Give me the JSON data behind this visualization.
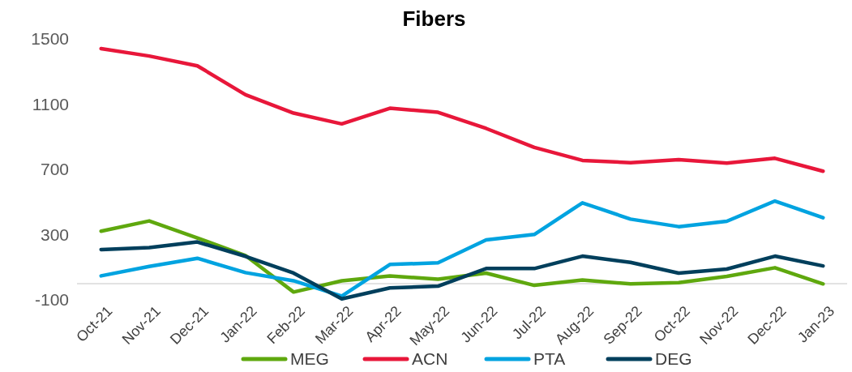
{
  "chart_data": {
    "type": "line",
    "title": "Fibers",
    "categories": [
      "Oct-21",
      "Nov-21",
      "Dec-21",
      "Jan-22",
      "Feb-22",
      "Mar-22",
      "Apr-22",
      "May-22",
      "Jun-22",
      "Jul-22",
      "Aug-22",
      "Sep-22",
      "Oct-22",
      "Nov-22",
      "Dec-22",
      "Jan-23"
    ],
    "series": [
      {
        "name": "MEG",
        "color": "#5fa80e",
        "values": [
          321,
          384,
          280,
          172,
          -52,
          17,
          47,
          27,
          64,
          -11,
          22,
          -2,
          6,
          44,
          97,
          -2
        ]
      },
      {
        "name": "ACN",
        "color": "#e8173a",
        "values": [
          1440,
          1395,
          1335,
          1158,
          1045,
          979,
          1075,
          1050,
          951,
          835,
          755,
          741,
          760,
          739,
          768,
          689
        ]
      },
      {
        "name": "PTA",
        "color": "#00a3e0",
        "values": [
          47,
          105,
          155,
          67,
          17,
          -77,
          117,
          127,
          268,
          301,
          495,
          395,
          349,
          382,
          506,
          404
        ]
      },
      {
        "name": "DEG",
        "color": "#003f5c",
        "values": [
          208,
          221,
          255,
          167,
          64,
          -94,
          -27,
          -16,
          92,
          92,
          168,
          130,
          64,
          89,
          168,
          108
        ]
      }
    ],
    "ylim": [
      -100,
      1500
    ],
    "yticks": [
      -100,
      300,
      700,
      1100,
      1500
    ],
    "grid": false,
    "legend": "bottom",
    "marker": "none",
    "line_style": "solid"
  }
}
